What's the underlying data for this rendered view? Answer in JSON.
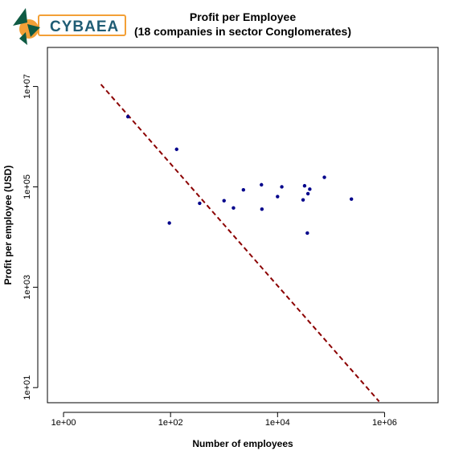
{
  "logo": {
    "text": "CYBAEA",
    "colors": {
      "green": "#0f5a43",
      "orange": "#f3a036",
      "border": "#f3a036",
      "text": "#1f5c74"
    }
  },
  "chart_data": {
    "type": "scatter",
    "title": "Profit per Employee",
    "subtitle": "(18 companies in sector Conglomerates)",
    "xlabel": "Number of employees",
    "ylabel": "Profit per employee (USD)",
    "x_scale": "log10",
    "y_scale": "log10",
    "xlim": [
      0.5,
      10000000
    ],
    "ylim": [
      5,
      60000000
    ],
    "x_ticks": [
      {
        "value": 1,
        "label": "1e+00"
      },
      {
        "value": 100,
        "label": "1e+02"
      },
      {
        "value": 10000,
        "label": "1e+04"
      },
      {
        "value": 1000000,
        "label": "1e+06"
      }
    ],
    "y_ticks": [
      {
        "value": 10,
        "label": "1e+01"
      },
      {
        "value": 1000,
        "label": "1e+03"
      },
      {
        "value": 100000,
        "label": "1e+05"
      },
      {
        "value": 10000000,
        "label": "1e+07"
      }
    ],
    "grid": false,
    "point_color": "#00008b",
    "reference_line": {
      "style": "dashed",
      "color": "#8b0000",
      "points": [
        [
          5,
          11000000
        ],
        [
          790000,
          5.3
        ]
      ]
    },
    "points": [
      {
        "x": 16,
        "y": 2500000
      },
      {
        "x": 130,
        "y": 560000
      },
      {
        "x": 95,
        "y": 19000
      },
      {
        "x": 350,
        "y": 47000
      },
      {
        "x": 1000,
        "y": 53000
      },
      {
        "x": 1500,
        "y": 38000
      },
      {
        "x": 2300,
        "y": 87000
      },
      {
        "x": 5000,
        "y": 110000
      },
      {
        "x": 5100,
        "y": 36000
      },
      {
        "x": 10000,
        "y": 64000
      },
      {
        "x": 12000,
        "y": 100000
      },
      {
        "x": 30000,
        "y": 55000
      },
      {
        "x": 32000,
        "y": 105000
      },
      {
        "x": 37000,
        "y": 73000
      },
      {
        "x": 40000,
        "y": 90000
      },
      {
        "x": 36000,
        "y": 12000
      },
      {
        "x": 75000,
        "y": 155000
      },
      {
        "x": 240000,
        "y": 57000
      }
    ]
  }
}
